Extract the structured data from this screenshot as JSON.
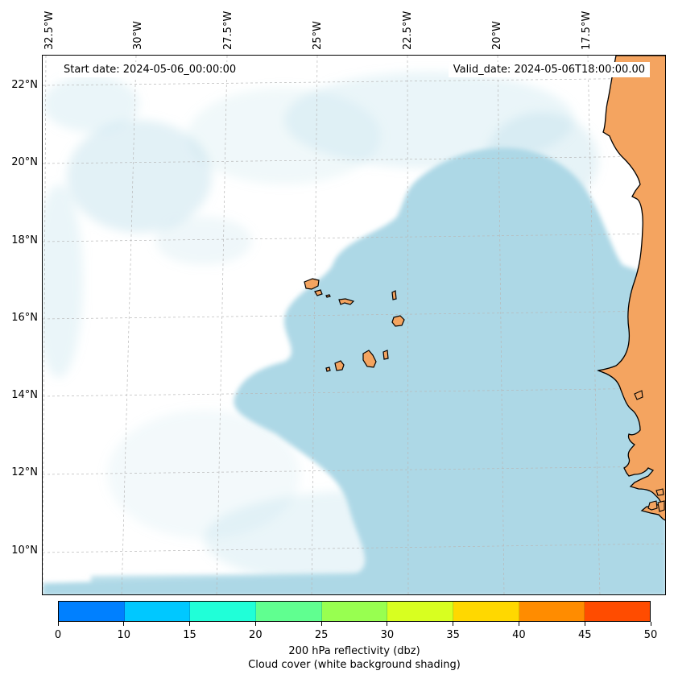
{
  "header": {
    "start_date": "Start date: 2024-05-06_00:00:00",
    "valid_date": "Valid_date: 2024-05-06T18:00:00.00"
  },
  "axes": {
    "longitude_labels": [
      "32.5°W",
      "30°W",
      "27.5°W",
      "25°W",
      "22.5°W",
      "20°W",
      "17.5°W"
    ],
    "latitude_labels": [
      "22°N",
      "20°N",
      "18°N",
      "16°N",
      "14°N",
      "12°N",
      "10°N"
    ],
    "gridlines": "dashed",
    "lon_range": [
      -33.0,
      -15.6
    ],
    "lat_range": [
      8.9,
      22.8
    ]
  },
  "colorbar": {
    "ticks": [
      "0",
      "10",
      "15",
      "20",
      "25",
      "30",
      "35",
      "40",
      "45",
      "50"
    ],
    "colors": [
      "#0080ff",
      "#00c8ff",
      "#20ffd8",
      "#60ff90",
      "#98ff50",
      "#d8ff20",
      "#ffd800",
      "#ff8c00",
      "#ff4c00"
    ],
    "label_line1": "200 hPa reflectivity (dbz)",
    "label_line2": "Cloud cover (white background shading)"
  },
  "map": {
    "land_color": "#f4a460",
    "ocean_color": "#ffffff",
    "cloud_color": "#add8e6",
    "coast_color": "#000000",
    "features": [
      "coastline-west-africa",
      "cape-verde-islands"
    ]
  }
}
